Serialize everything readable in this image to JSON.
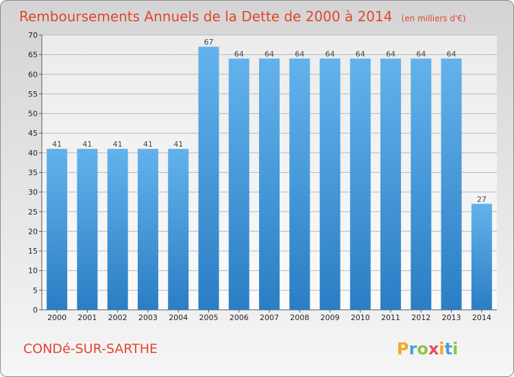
{
  "chart_data": {
    "type": "bar",
    "title": "Remboursements Annuels de la Dette de 2000 à 2014",
    "subtitle": "(en milliers d'€)",
    "categories": [
      "2000",
      "2001",
      "2002",
      "2003",
      "2004",
      "2005",
      "2006",
      "2007",
      "2008",
      "2009",
      "2010",
      "2011",
      "2012",
      "2013",
      "2014"
    ],
    "values": [
      41,
      41,
      41,
      41,
      41,
      67,
      64,
      64,
      64,
      64,
      64,
      64,
      64,
      64,
      27
    ],
    "value_labels": [
      "41",
      "41",
      "41",
      "41",
      "41",
      "67",
      "64",
      "64",
      "64",
      "64",
      "64",
      "64",
      "64",
      "64",
      "27"
    ],
    "ylim": [
      0,
      70
    ],
    "yticks": [
      "0",
      "5",
      "10",
      "15",
      "20",
      "25",
      "30",
      "35",
      "40",
      "45",
      "50",
      "55",
      "60",
      "65",
      "70"
    ],
    "grid": true,
    "colors": {
      "bar_light": "#63b2ec",
      "bar_dark": "#2b7ec4",
      "title": "#e0452f"
    }
  },
  "footer": {
    "commune": "CONDé-SUR-SARTHE",
    "logo_letters": [
      "P",
      "r",
      "o",
      "x",
      "i",
      "t",
      "i"
    ],
    "logo_colors": [
      "#f5a623",
      "#3ea4dc",
      "#8cc63f",
      "#e84a5f",
      "#f5a623",
      "#3ea4dc",
      "#8cc63f"
    ]
  }
}
